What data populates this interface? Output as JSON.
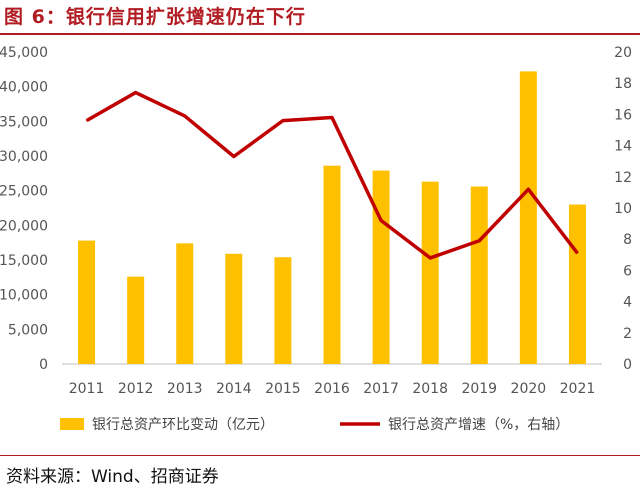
{
  "title": "图 6：银行信用扩张增速仍在下行",
  "source": "资料来源：Wind、招商证券",
  "colors": {
    "title": "#b01c22",
    "bar": "#ffc000",
    "line": "#c00000",
    "rule": "#b01c22"
  },
  "chart_data": {
    "type": "bar",
    "categories": [
      "2011",
      "2012",
      "2013",
      "2014",
      "2015",
      "2016",
      "2017",
      "2018",
      "2019",
      "2020",
      "2021"
    ],
    "series": [
      {
        "name": "银行总资产环比变动（亿元）",
        "type": "bar",
        "axis": "left",
        "values": [
          17800,
          12600,
          17400,
          15900,
          15400,
          28600,
          27900,
          26300,
          25600,
          42200,
          23000
        ]
      },
      {
        "name": "银行总资产增速（%，右轴）",
        "type": "line",
        "axis": "right",
        "values": [
          15.6,
          17.4,
          15.9,
          13.3,
          15.6,
          15.8,
          9.2,
          6.8,
          7.9,
          11.2,
          7.1
        ]
      }
    ],
    "left_axis": {
      "ylim": [
        0,
        45000
      ],
      "ticks": [
        "0",
        "5,000",
        "10,000",
        "15,000",
        "20,000",
        "25,000",
        "30,000",
        "35,000",
        "40,000",
        "45,000"
      ]
    },
    "right_axis": {
      "ylim": [
        0,
        20
      ],
      "ticks": [
        "0",
        "2",
        "4",
        "6",
        "8",
        "10",
        "12",
        "14",
        "16",
        "18",
        "20"
      ]
    },
    "grid": false,
    "legend_position": "bottom"
  }
}
